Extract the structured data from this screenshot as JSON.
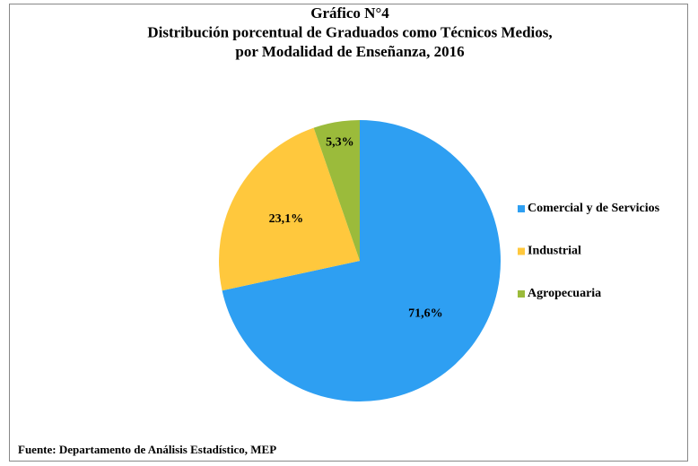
{
  "chart_data": {
    "type": "pie",
    "title": [
      "Gráfico N°4",
      "Distribución porcentual de Graduados como Técnicos Medios,",
      "por Modalidad de Enseñanza, 2016"
    ],
    "categories": [
      "Comercial y de Servicios",
      "Industrial",
      "Agropecuaria"
    ],
    "values": [
      71.6,
      23.1,
      5.3
    ],
    "value_labels": [
      "71,6%",
      "23,1%",
      "5,3%"
    ],
    "colors": [
      "#2e9ff2",
      "#ffc83d",
      "#9bbb3b"
    ],
    "legend": "right",
    "source": "Fuente: Departamento de Análisis Estadístico, MEP"
  }
}
